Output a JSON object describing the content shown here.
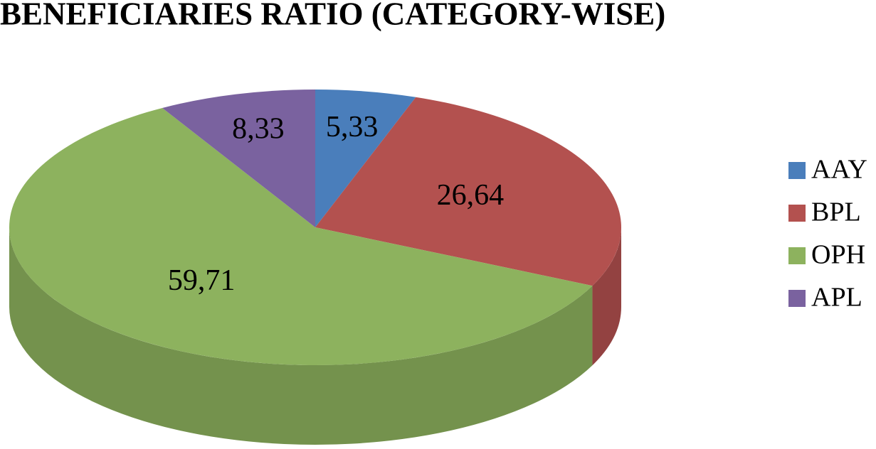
{
  "chart_data": {
    "type": "pie",
    "title": "BENEFICIARIES RATIO (CATEGORY-WISE)",
    "categories": [
      "AAY",
      "BPL",
      "OPH",
      "APL"
    ],
    "values": [
      5.33,
      26.64,
      59.71,
      8.33
    ],
    "value_labels": [
      "5,33",
      "26,64",
      "59,71",
      "8,33"
    ],
    "colors": [
      "#4a7ebb",
      "#b3514f",
      "#8db25e",
      "#7a629f"
    ],
    "legend": "right"
  }
}
